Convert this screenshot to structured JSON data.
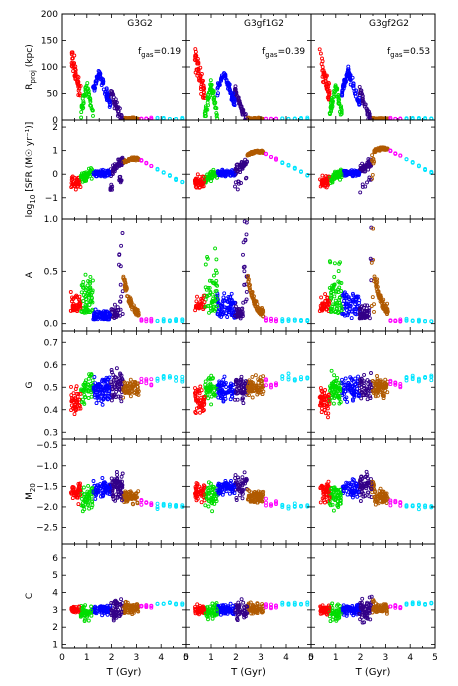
{
  "chart_data": {
    "type": "scatter",
    "columns": [
      {
        "title": "G3G2",
        "fgas_label": "f",
        "fgas_sub": "gas",
        "fgas_value": "=0.19"
      },
      {
        "title": "G3gf1G2",
        "fgas_label": "f",
        "fgas_sub": "gas",
        "fgas_value": "=0.39"
      },
      {
        "title": "G3gf2G2",
        "fgas_label": "f",
        "fgas_sub": "gas",
        "fgas_value": "=0.53"
      }
    ],
    "xlabel": "T (Gyr)",
    "xlim": [
      0,
      5
    ],
    "x_ticks": [
      0,
      1,
      2,
      3,
      4,
      5
    ],
    "phase_colors": [
      "#ff0000",
      "#00dd00",
      "#0000ff",
      "#330088",
      "#b05a00",
      "#ff00ff",
      "#00e5ff"
    ],
    "phases_gyr": [
      [
        0.35,
        0.75
      ],
      [
        0.75,
        1.25
      ],
      [
        1.25,
        1.95
      ],
      [
        1.95,
        2.45
      ],
      [
        2.45,
        3.1
      ],
      [
        3.1,
        3.7
      ],
      [
        3.7,
        5.0
      ]
    ],
    "rows": [
      {
        "key": "rproj",
        "ylabel": "R",
        "ylabel_sub": "proj",
        "ylabel_tail": " (kpc)",
        "ylim": [
          0,
          200
        ],
        "ticks": [
          0,
          50,
          100,
          150,
          200
        ]
      },
      {
        "key": "sfr",
        "ylabel": "log",
        "ylabel_sub": "10",
        "ylabel_tail": " [SFR (M☉ yr⁻¹)]",
        "ylim": [
          -1.9,
          2.3
        ],
        "ticks": [
          -1,
          0,
          1,
          2
        ]
      },
      {
        "key": "A",
        "ylabel": "A",
        "ylabel_sub": "",
        "ylabel_tail": "",
        "ylim": [
          -0.07,
          1.0
        ],
        "ticks": [
          0.0,
          0.5,
          1.0
        ]
      },
      {
        "key": "G",
        "ylabel": "G",
        "ylabel_sub": "",
        "ylabel_tail": "",
        "ylim": [
          0.27,
          0.75
        ],
        "ticks": [
          0.3,
          0.4,
          0.5,
          0.6,
          0.7
        ]
      },
      {
        "key": "M20",
        "ylabel": "M",
        "ylabel_sub": "20",
        "ylabel_tail": "",
        "ylim": [
          -2.9,
          -0.35
        ],
        "ticks": [
          -2.5,
          -2.0,
          -1.5,
          -1.0,
          -0.5
        ]
      },
      {
        "key": "C",
        "ylabel": "C",
        "ylabel_sub": "",
        "ylabel_tail": "",
        "ylim": [
          0.8,
          6.8
        ],
        "ticks": [
          1,
          2,
          3,
          4,
          5,
          6
        ]
      }
    ]
  }
}
